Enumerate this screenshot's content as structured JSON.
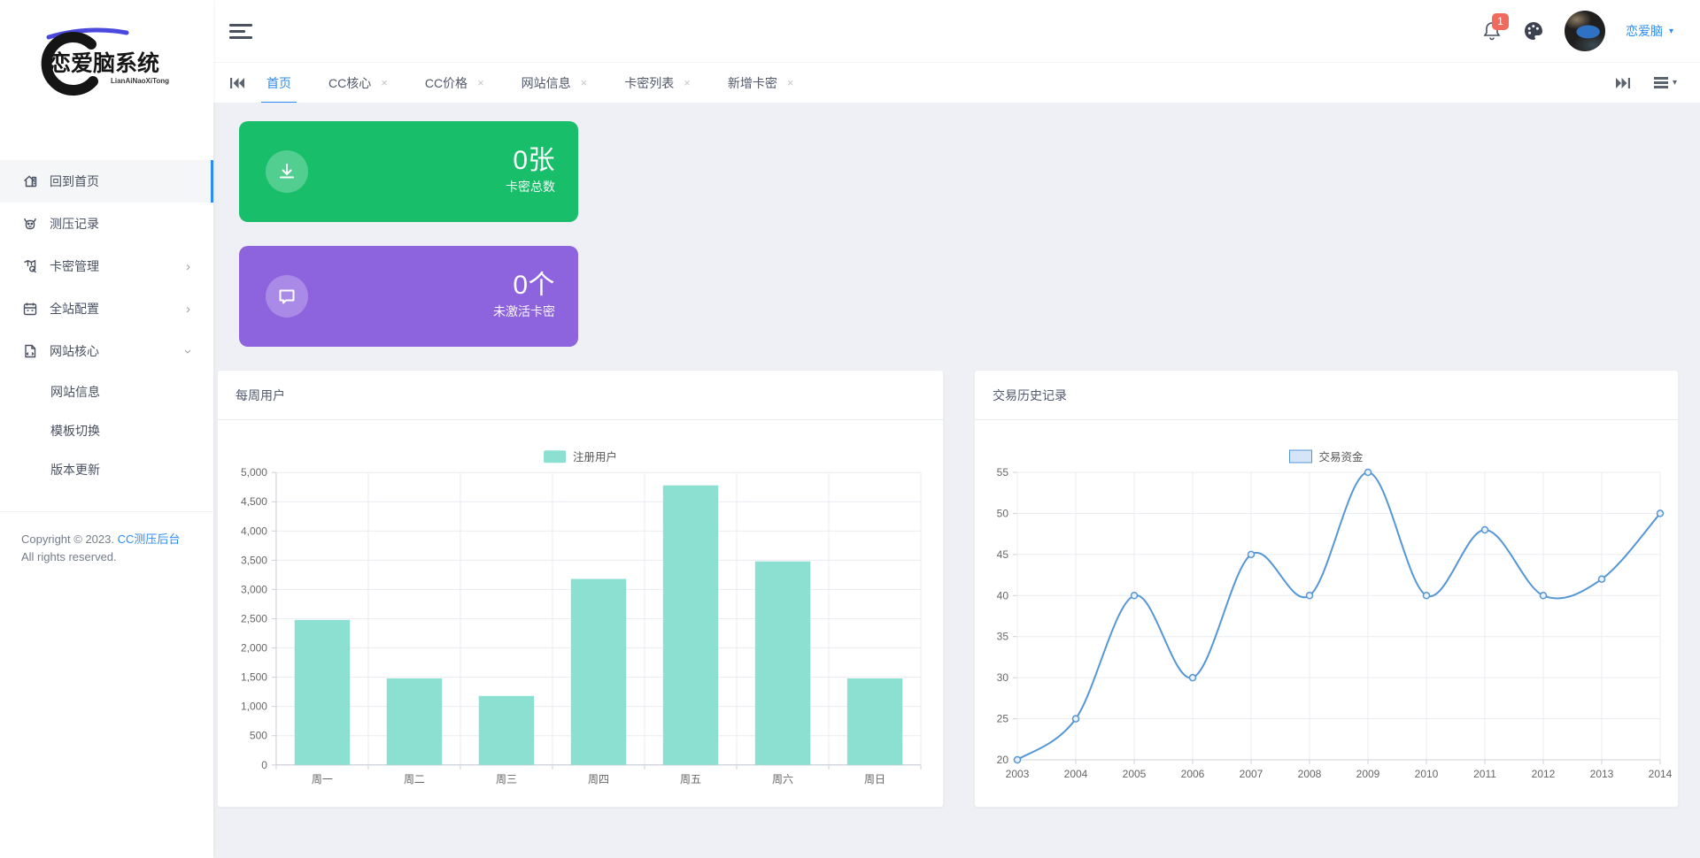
{
  "icons": {
    "close": "×",
    "chevron": "›",
    "caret": "▾"
  },
  "colors": {
    "accent_blue": "#2d8cf0",
    "card_green": "#19be6b",
    "card_purple": "#8d63de",
    "badge_red": "#f16a5e",
    "bar_teal": "#8CE0D2",
    "line_blue": "#5596d6",
    "content_bg": "#eef0f5"
  },
  "sidebar": {
    "logo_title": "恋爱脑系统",
    "logo_subtitle": "LianAiNaoXiTong",
    "items": [
      {
        "label": "回到首页"
      },
      {
        "label": "测压记录"
      },
      {
        "label": "卡密管理"
      },
      {
        "label": "全站配置"
      },
      {
        "label": "网站核心",
        "children": [
          "网站信息",
          "模板切换",
          "版本更新"
        ]
      }
    ],
    "copyright": {
      "prefix": "Copyright © 2023.",
      "link": "CC测压后台",
      "suffix": "All rights reserved."
    }
  },
  "topbar": {
    "notification_count": "1",
    "username": "恋爱脑"
  },
  "tabbar": {
    "tabs": [
      {
        "label": "首页",
        "active": true,
        "closable": false
      },
      {
        "label": "CC核心",
        "active": false,
        "closable": true
      },
      {
        "label": "CC价格",
        "active": false,
        "closable": true
      },
      {
        "label": "网站信息",
        "active": false,
        "closable": true
      },
      {
        "label": "卡密列表",
        "active": false,
        "closable": true
      },
      {
        "label": "新增卡密",
        "active": false,
        "closable": true
      }
    ]
  },
  "stat_cards": [
    {
      "value": "0张",
      "label": "卡密总数",
      "icon": "download-icon",
      "color": "#19be6b"
    },
    {
      "value": "0个",
      "label": "未激活卡密",
      "icon": "chat-icon",
      "color": "#8d63de"
    }
  ],
  "chart_data": [
    {
      "type": "bar",
      "title": "每周用户",
      "legend_position": "top",
      "categories": [
        "周一",
        "周二",
        "周三",
        "周四",
        "周五",
        "周六",
        "周日"
      ],
      "series": [
        {
          "name": "注册用户",
          "values": [
            2480,
            1480,
            1180,
            3180,
            4780,
            3480,
            1480
          ]
        }
      ],
      "xlabel": "",
      "ylabel": "",
      "ylim": [
        0,
        5000
      ],
      "ytick_step": 500,
      "grid": true,
      "bar_color": "#8CE0D2"
    },
    {
      "type": "line",
      "title": "交易历史记录",
      "legend_position": "top",
      "x": [
        2003,
        2004,
        2005,
        2006,
        2007,
        2008,
        2009,
        2010,
        2011,
        2012,
        2013,
        2014
      ],
      "series": [
        {
          "name": "交易资金",
          "values": [
            20,
            25,
            40,
            30,
            45,
            40,
            55,
            40,
            48,
            40,
            42,
            50
          ]
        }
      ],
      "xlabel": "",
      "ylabel": "",
      "ylim": [
        20,
        55
      ],
      "ytick_step": 5,
      "grid": true,
      "smooth": true,
      "line_color": "#5596d6",
      "marker_fill": "#e9f2fb",
      "legend_swatch_fill": "#d3e5f7"
    }
  ]
}
